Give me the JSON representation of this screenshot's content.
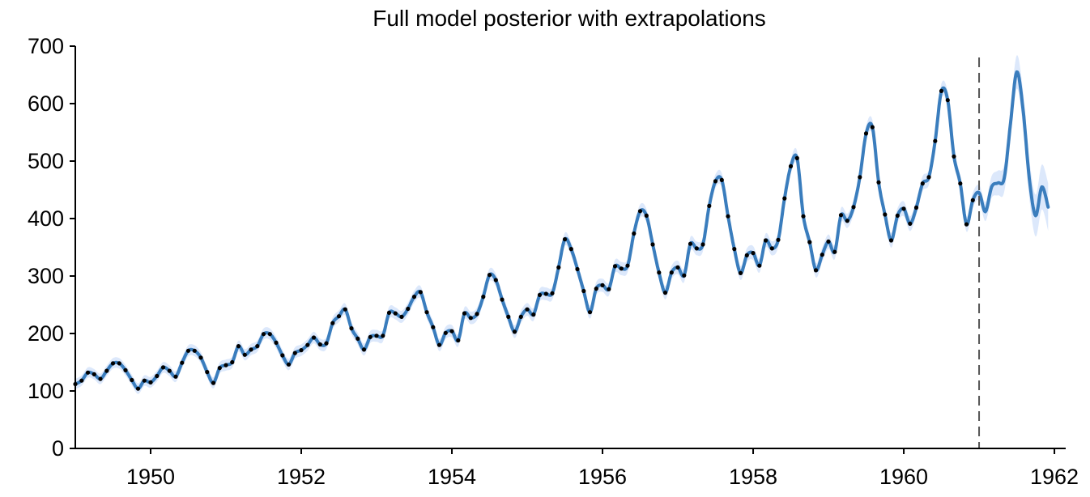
{
  "chart_data": {
    "type": "line",
    "title": "Full model posterior with extrapolations",
    "xlabel": "",
    "ylabel": "",
    "xlim": [
      1949.0,
      1962.15
    ],
    "ylim": [
      0,
      700
    ],
    "x_ticks": [
      1950,
      1952,
      1954,
      1956,
      1958,
      1960,
      1962
    ],
    "y_ticks": [
      0,
      100,
      200,
      300,
      400,
      500,
      600,
      700
    ],
    "extrapolation_boundary_x": 1961.0,
    "grid": false,
    "legend": "none",
    "colors": {
      "mean": "#3a7dbd",
      "band": "#dce8fb",
      "observed": "#000000",
      "boundary": "#555555"
    },
    "observed_start_year": 1949,
    "observed": [
      112,
      118,
      132,
      129,
      121,
      135,
      148,
      148,
      136,
      119,
      104,
      118,
      115,
      126,
      141,
      135,
      125,
      149,
      170,
      170,
      158,
      133,
      114,
      140,
      145,
      150,
      178,
      163,
      172,
      178,
      199,
      199,
      184,
      162,
      146,
      166,
      171,
      180,
      193,
      181,
      183,
      218,
      230,
      242,
      209,
      191,
      172,
      194,
      196,
      196,
      236,
      235,
      229,
      243,
      264,
      272,
      237,
      211,
      180,
      201,
      204,
      188,
      235,
      227,
      234,
      264,
      302,
      293,
      259,
      229,
      203,
      229,
      242,
      233,
      267,
      269,
      270,
      315,
      364,
      347,
      312,
      274,
      237,
      278,
      284,
      277,
      317,
      313,
      318,
      374,
      413,
      405,
      355,
      306,
      271,
      306,
      315,
      301,
      356,
      348,
      355,
      422,
      465,
      467,
      404,
      347,
      305,
      336,
      340,
      318,
      362,
      348,
      363,
      435,
      491,
      505,
      404,
      359,
      310,
      337,
      360,
      342,
      406,
      396,
      420,
      472,
      548,
      559,
      463,
      407,
      362,
      405,
      417,
      391,
      419,
      461,
      472,
      535,
      622,
      606,
      508,
      461,
      390,
      432
    ],
    "extrapolation_start_year": 1961,
    "extrapolation_mean": [
      445,
      412,
      455,
      462,
      470,
      565,
      655,
      590,
      470,
      405,
      455,
      420
    ]
  }
}
